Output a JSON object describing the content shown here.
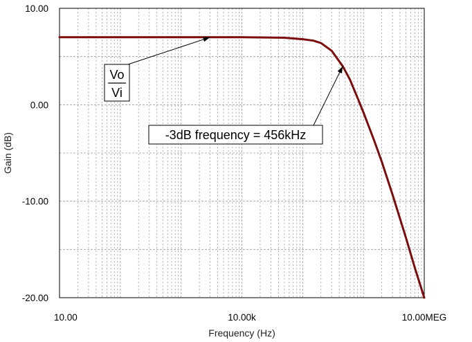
{
  "chart_data": {
    "type": "line",
    "xscale": "log",
    "xlabel": "Frequency (Hz)",
    "ylabel": "Gain (dB)",
    "xlim": [
      10,
      10000000
    ],
    "ylim": [
      -20,
      10
    ],
    "grid": true,
    "x_tick_labels": [
      {
        "value": 10,
        "label": "10.00"
      },
      {
        "value": 10000,
        "label": "10.00k"
      },
      {
        "value": 10000000,
        "label": "10.00MEG"
      }
    ],
    "y_tick_labels": [
      {
        "value": 10,
        "label": "10.00"
      },
      {
        "value": 0,
        "label": "0.00"
      },
      {
        "value": -10,
        "label": "-10.00"
      },
      {
        "value": -20,
        "label": "-20.00"
      }
    ],
    "series": [
      {
        "color": "#7b0c0c",
        "x": [
          10,
          100,
          1000,
          10000,
          50000,
          100000,
          150000,
          200000,
          300000,
          456000,
          600000,
          800000,
          1000000,
          1500000,
          2000000,
          3000000,
          5000000,
          7000000,
          10000000
        ],
        "y": [
          7.0,
          7.0,
          7.0,
          7.0,
          6.95,
          6.8,
          6.65,
          6.4,
          5.6,
          4.0,
          2.6,
          0.7,
          -0.8,
          -3.7,
          -5.9,
          -9.3,
          -13.8,
          -16.9,
          -20.0
        ]
      }
    ],
    "annotations": [
      {
        "text_num": "Vo",
        "text_den": "Vi",
        "target": {
          "x": 3000,
          "y": 7.0
        }
      },
      {
        "text": "-3dB frequency = 456kHz",
        "target": {
          "x": 456000,
          "y": 4.0
        }
      }
    ]
  }
}
